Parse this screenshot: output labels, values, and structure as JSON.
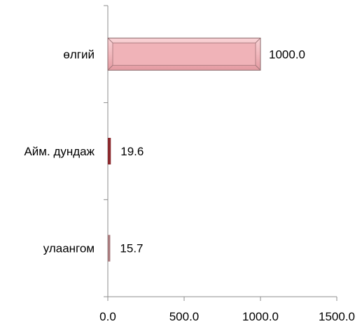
{
  "chart_data": {
    "type": "bar",
    "orientation": "horizontal",
    "categories": [
      "өлгий",
      "Айм. дундаж",
      "улаангом"
    ],
    "values": [
      1000.0,
      19.6,
      15.7
    ],
    "value_labels": [
      "1000.0",
      "19.6",
      "15.7"
    ],
    "xlim": [
      0,
      1500
    ],
    "x_ticks": [
      0,
      500,
      1000,
      1500
    ],
    "x_tick_labels": [
      "0.0",
      "500.0",
      "1000.0",
      "1500.0"
    ],
    "bar_colors": [
      "#f2b8bd",
      "#8b2a2e",
      "#a87a7d"
    ],
    "grid": false,
    "legend": "none"
  }
}
